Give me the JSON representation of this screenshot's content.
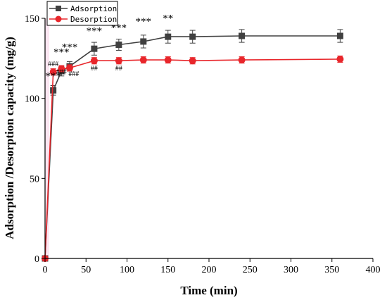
{
  "chart_data": {
    "type": "line",
    "xlabel": "Time (min)",
    "ylabel": "Adsorption /Desorption capacity (mg/g)",
    "xlim": [
      0,
      400
    ],
    "ylim": [
      0,
      150
    ],
    "xticks": [
      0,
      50,
      100,
      150,
      200,
      250,
      300,
      350,
      400
    ],
    "yticks": [
      0,
      50,
      100,
      150
    ],
    "grid": false,
    "legend_position": "top-left",
    "series": [
      {
        "name": "Adsorption",
        "color": "#404040",
        "marker": "square",
        "x": [
          0,
          10,
          20,
          30,
          60,
          90,
          120,
          150,
          180,
          240,
          360
        ],
        "y": [
          0,
          105,
          117,
          120,
          131,
          133.5,
          135.5,
          138.5,
          138.5,
          139,
          139
        ],
        "err": [
          0,
          3,
          3,
          3,
          4,
          3.5,
          4,
          4,
          4,
          4,
          4
        ]
      },
      {
        "name": "Desorption",
        "color": "#e8262b",
        "marker": "circle",
        "x": [
          0,
          10,
          20,
          30,
          60,
          90,
          120,
          150,
          180,
          240,
          360
        ],
        "y": [
          0,
          116.5,
          118.5,
          119,
          123.5,
          123.5,
          124,
          124,
          123.5,
          124,
          124.5
        ],
        "err": [
          0,
          2,
          2,
          2,
          2,
          2,
          2,
          2,
          2,
          2,
          2
        ]
      }
    ],
    "annotations": [
      {
        "text": "***",
        "x": 10,
        "y": 112,
        "size": 15
      },
      {
        "text": "###",
        "x": 10,
        "y": 120,
        "size": 10
      },
      {
        "text": "***",
        "x": 20,
        "y": 127,
        "size": 15
      },
      {
        "text": "###",
        "x": 20,
        "y": 115,
        "size": 10
      },
      {
        "text": "***",
        "x": 30,
        "y": 130,
        "size": 15
      },
      {
        "text": "###",
        "x": 35,
        "y": 114,
        "size": 10
      },
      {
        "text": "***",
        "x": 60,
        "y": 140,
        "size": 15
      },
      {
        "text": "##",
        "x": 60,
        "y": 117.5,
        "size": 10
      },
      {
        "text": "***",
        "x": 90,
        "y": 142,
        "size": 15
      },
      {
        "text": "##",
        "x": 90,
        "y": 117.5,
        "size": 10
      },
      {
        "text": "***",
        "x": 120,
        "y": 146,
        "size": 15
      },
      {
        "text": "**",
        "x": 150,
        "y": 148,
        "size": 15
      }
    ]
  }
}
